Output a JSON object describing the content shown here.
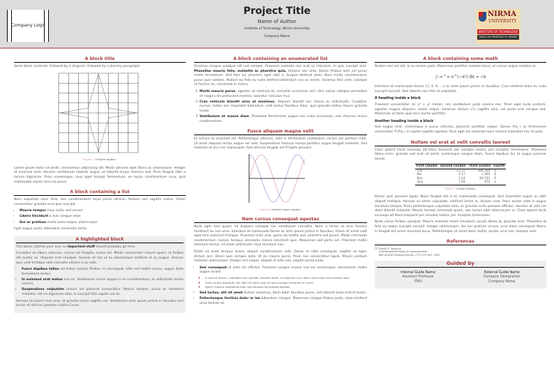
{
  "header": {
    "company_logo": "Company Logo",
    "title": "Project Title",
    "author": "Name of Author",
    "institute": "Institute of Technology, Nirma University",
    "company": "Company Name",
    "university_logo": {
      "name": "NIRMA",
      "sub": "UNIVERSITY",
      "band1": "INSTITUTE OF TECHNOLOGY",
      "band2": "NAAC ACCREDITED 'A' GRADE"
    }
  },
  "col1": {
    "block1": {
      "title": "A block title",
      "intro": "Some block contents, followed by a diagram, followed by a dummy paragraph.",
      "caption_label": "Figure 1:",
      "caption": "A figure caption.",
      "para": "Lorem ipsum dolor sit amet, consectetur adipiscing elit. Morbi ultricies eget libero ac ullamcorper. Integer et euismod ante. Aenean vestibulum lobortis augue, ut lobortis turpis rhoncus sed. Proin feugiat nibh a lacinia dignissim. Proin scelerisque, risus eget tempor fermentum, ex turpis condimentum urna, quis malesuada sapien arcu eu purus."
    },
    "block2": {
      "title": "A block containing a list",
      "intro": "Nam vulputate nunc felis, non condimentum lacus porta ultrices. Nullam sed sagittis metus. Etiam consectetur gravida urna quis suscipit.",
      "items": [
        {
          "b": "Mauris tempor",
          "t": " risus nulla, sed ornare"
        },
        {
          "b": "Libero tincidunt",
          "t": " a duis congue vitae"
        },
        {
          "b": "Dui ac pretium",
          "t": " morbi justo neque, ullamcorper"
        }
      ],
      "outro": "Eget augue porta, bibendum venenatis tortor."
    },
    "block3": {
      "title": "A highlighted block",
      "p1_pre": "This block catches your eye, so ",
      "p1_b": "important stuff",
      "p1_post": " should probably go here.",
      "p2": "Curabitur eu libero vehicula, cursus est fringilla, luctus est. Morbi consectetur mauris quam, at finibus elit auctor ac. Aliquam erat volutpat. Aenean at nisl ut ex ullamcorper eleifend et eu augue. Aenean quis velit tristique odio convallis ultrices a ac odio.",
      "items": [
        {
          "b": "Fusce dapibus tellus",
          "t": " vel tellus semper finibus. In consequat, nibh sed mattis luctus, augue diam fermentum lectus."
        },
        {
          "b": "In euismod erat metus",
          "t": " non ex. Vestibulum luctus augue in mi condimentum, at sollicitudin lorem viverra."
        },
        {
          "b": "Suspendisse vulputate",
          "t": " mauris vel placerat consectetur. Mauris semper, purus ac hendrerit molestie, elit mi dignissim odio, in suscipit felis sapien vel ex."
        }
      ],
      "p3": "Aenean tincidunt risus eros, at gravida lorem sagittis vel. Vestibulum ante ipsum primis in faucibus orci luctus et ultrices posuere cubilia Curae."
    }
  },
  "col2": {
    "block1": {
      "title": "A block containing an enumerated list",
      "p_pre": "Vivamus congue volutpat elit non semper. Praesent molestie nec erat ac interdum. In quis suscipit erat. ",
      "p_b": "Phasellus mauris felis, molestie ac pharetra quis,",
      "p_post": " tempus nec ante. Donec finibus ante vel purus mollis fermentum. Sed felis mi, pharetra eget nibh a, feugiat eleifend dolor. Nam mollis condimentum purus quis sodales. Nullam eu felis eu nulla eleifend bibendum nec eu lorem. Vivamus felis velit, volutpat ut facilisis ac, commodo in metus.",
      "items": [
        {
          "b": "Morbi mauris purus",
          "t": ", egestas at vehicula et, convallis accumsan orci. Orci varius natoque penatibus et magnis dis parturient montes, nascetur ridiculus mus."
        },
        {
          "b": "Cras vehicula blandit urna ut maximus.",
          "t": " Aliquam blandit nec massa ac sollicitudin. Curabitur cursus, metus nec imperdiet bibendum, velit lectus faucibus dolor, quis gravida metus mauris gravida turpis."
        },
        {
          "b": "Vestibulum et massa diam",
          "t": ". Phasellus fermentum augue non nulla accumsan, non rhoncus lectus condimentum."
        }
      ]
    },
    "block2": {
      "title": "Fusce aliquam magna velit",
      "para": "Et rutrum ex euismod vel. Pellentesque ultricies, velit in fermentum vestibulum, lectus nisi pretium nibh, sit amet aliquam lectus augue vel velit. Suspendisse rhoncus massa porttitor augue feugiat molestie. Sed molestie ut orci nec malesuada. Sed ultricies feugiat est fringilla posuere.",
      "caption_label": "Figure 2:",
      "caption": "Another figure caption.",
      "colors": {
        "sin": "#d08a8a",
        "cos": "#8a8ad0"
      }
    },
    "block3": {
      "title": "Nam cursus consequat egestas",
      "p1": "Nulla eget sem quam. Ut aliquam volutpat nisi vestibulum convallis. Nunc a lectus et eros facilisis hendrerit eu non urna. Interdum et malesuada fames ac ante ipsum primis in faucibus. Etiam sit amet velit eget sem euismod tristique. Praesent enim erat, porta vel mattis sed, pharetra sed ipsum. Morbi commodo condimentum massa, tempus venenatis massa hendrerit quis. Maecenas sed porta est. Praesent mollis interdum lectus, sit amet sollicitudin risus tincidunt non.",
      "p2": "Etiam sit amet tempus lorem, aliquet condimentum velit. Donec et nibh consequat, sagittis ex eget, dictum orci. Etiam quis semper ante. Ut eu mauris purus. Proin nec consectetur ligula. Mauris pretium molestie ullamcorper. Integer nisi neque, aliquet et odio non, sagittis porta justo.",
      "items": [
        {
          "b": "Sed consequat",
          "t": " id ante vel efficitur. Praesent congue massa sed est scelerisque, elementum mollis augue iaculis."
        },
        {
          "b": "Sed luctus, elit sit amet",
          "t": " dictum maximus, diam dolor faucibus purus, sed lobortis justo erat id turpis."
        },
        {
          "b": "Pellentesque facilisis dolor in leo",
          "t": " bibendum congue. Maecenas congue finibus justo, vitae eleifend urna facilisis at."
        }
      ],
      "subitems": [
        "In sed ert finibus, vulputate nunc gravida, pulvinar lorem. In maximus nunc dolor, sed auctor eros porttitor quis.",
        "Fusce ornare dignissim nisl. Nam sit amet risus vel lacus tempor tincidunt eu a arcu.",
        "Donec rhoncus vestibulum erat, quis aliquam leo gravida egestas."
      ]
    }
  },
  "col3": {
    "block1": {
      "title": "A block containing some math",
      "p1": "Nullam non est elit. In eu ornare justo. Maecenas porttitor sodales lacus, ut cursus augue sodales ac.",
      "math": "∫₋∞^∞ e^(−x²) dx = √π",
      "p2": "Interdum et malesuada fames {1, 4, 9, …} ac ante ipsum primis in faucibus. Cras eleifend dolor eu nulla suscipit suscipit. Sed lobortis non felis id vulputate.",
      "h1": "A heading inside a block",
      "p3": "Praesent consectetur mi x² + y² metus, nec vestibulum justo viverra nec. Proin eget nulla pretium, egestas magna aliquam, mollis neque. Vivamus dictum uᵀv sagittis odio, vel porta erat congue sed. Maecenas ut dolor quis arcu auctor porttitor.",
      "h2": "Another heading inside a block",
      "p4": "Sed augue erat, scelerisque a purus ultricies, placerat porttitor neque. Donec P(y | x) fermentum consectetur ∇ₓP(y | x) sapien sagittis egestas. Duis eget leo euismod nunc viverra imperdiet nec id justo."
    },
    "block2": {
      "title": "Nullam vel erat at velit convallis laoreet",
      "p1": "Class aptent taciti sociosqu ad litora torquent per conubia nostra, per inceptos himenaeos. Phasellus libero enim, gravida sed erat sit amet, scelerisque congue diam. Fusce dapibus dui ut augue pulvinar iaculis.",
      "table": {
        "headers": [
          "First column",
          "Second column",
          "Third column",
          "Fourth"
        ],
        "rows": [
          [
            "Foo",
            "13.37",
            "384,394",
            "α"
          ],
          [
            "Bar",
            "2.17",
            "1,392",
            "β"
          ],
          [
            "Baz",
            "3.14",
            "83,742",
            "δ"
          ],
          [
            "Qux",
            "7.59",
            "974",
            "γ"
          ]
        ]
      },
      "caption_label": "Table 1:",
      "caption": "A table caption.",
      "p2": "Donec quis posuere ligula. Nunc feugiat elit a mi malesuada consequat. Sed imperdiet augue ac nibh aliquet tristique. Aenean eu tortor vulputate, eleifend lorem in, dictum urna. Proin auctor ante in augue tincidunt tempor. Proin pellentesque vulputate odio, ac gravida nulla posuere efficitur. Aenean at velit vel dolor blandit molestie. Mauris laoreet commodo quam, non luctus nibh ullamcorper in. Class aptent taciti sociosqu ad litora torquent per conubia nostra, per inceptos himenaeos.",
      "p3": "Nulla varius finibus volutpat. Mauris molestie lorem tincidunt, iaculis libero at, gravida ante. Phasellus at felis eu neque suscipit suscipit. Integer ullamcorper, dui nec pretium ornare, urna dolor consequat libero, in feugiat elit lorem euismod lacus. Pellentesque sit amet dolor mollis, auctor urna non, tempus sem."
    },
    "refs": {
      "title": "References",
      "entry": [
        "[1]  Claude E. Shannon.",
        "A mathematical theory of communication.",
        "Bell System Technical Journal, 27(3):379–423, 1948."
      ]
    },
    "guided": {
      "title": "Guided by",
      "internal": {
        "name": "Internal Guide Name",
        "role": "Assistant Professor",
        "org": "ITNU"
      },
      "external": {
        "name": "External Guide Name",
        "role": "Company Designation",
        "org": "Company Name"
      }
    }
  }
}
